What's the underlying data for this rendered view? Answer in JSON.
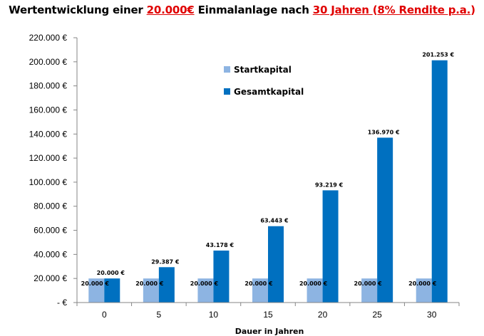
{
  "chart_data": {
    "type": "bar",
    "title": {
      "part1": "Wertentwicklung einer ",
      "amount": "20.000€",
      "part2": " Einmalanlage  nach ",
      "years": "30 Jahren ",
      "part3": "(",
      "rendite": "8% Rendite p.a.",
      "part4": ")"
    },
    "xlabel": "Dauer in Jahren",
    "ylabel": "",
    "ylim": [
      0,
      220000
    ],
    "y_tick_values": [
      0,
      20000,
      40000,
      60000,
      80000,
      100000,
      120000,
      140000,
      160000,
      180000,
      200000,
      220000
    ],
    "y_tick_labels": [
      "-  €",
      "20.000 €",
      "40.000 €",
      "60.000 €",
      "80.000 €",
      "100.000 €",
      "120.000 €",
      "140.000 €",
      "160.000 €",
      "180.000 €",
      "200.000 €",
      "220.000 €"
    ],
    "categories": [
      "0",
      "5",
      "10",
      "15",
      "20",
      "25",
      "30"
    ],
    "series": [
      {
        "name": "Startkapital",
        "color": "#8DB4E2",
        "values": [
          20000,
          20000,
          20000,
          20000,
          20000,
          20000,
          20000
        ],
        "labels": [
          "20.000 €",
          "20.000 €",
          "20.000 €",
          "20.000 €",
          "20.000 €",
          "20.000 €",
          "20.000 €"
        ]
      },
      {
        "name": "Gesamtkapital",
        "color": "#0070C0",
        "values": [
          20000,
          29387,
          43178,
          63443,
          93219,
          136970,
          201253
        ],
        "labels": [
          "20.000 €",
          "29.387 €",
          "43.178 €",
          "63.443 €",
          "93.219 €",
          "136.970 €",
          "201.253 €"
        ]
      }
    ],
    "legend_position": "top-center",
    "grid": false
  }
}
